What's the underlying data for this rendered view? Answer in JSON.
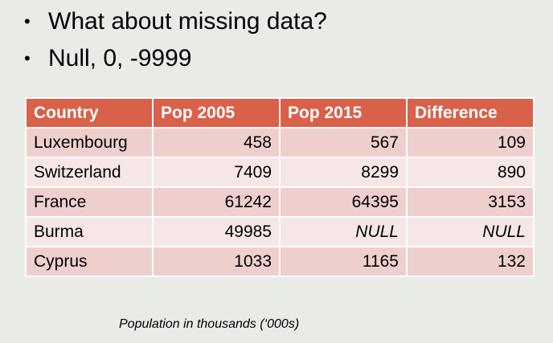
{
  "bullets": [
    "What about missing data?",
    "Null, 0, -9999"
  ],
  "table": {
    "headers": [
      "Country",
      "Pop 2005",
      "Pop 2015",
      "Difference"
    ],
    "rows": [
      [
        "Luxembourg",
        "458",
        "567",
        "109"
      ],
      [
        "Switzerland",
        "7409",
        "8299",
        "890"
      ],
      [
        "France",
        "61242",
        "64395",
        "3153"
      ],
      [
        "Burma",
        "49985",
        "NULL",
        "NULL"
      ],
      [
        "Cyprus",
        "1033",
        "1165",
        "132"
      ]
    ]
  },
  "caption": "Population in thousands (‘000s)",
  "colors": {
    "header": "#d9614a",
    "row_odd": "#efcfcd",
    "row_even": "#f6e7e6",
    "background": "#e8ebe6"
  }
}
